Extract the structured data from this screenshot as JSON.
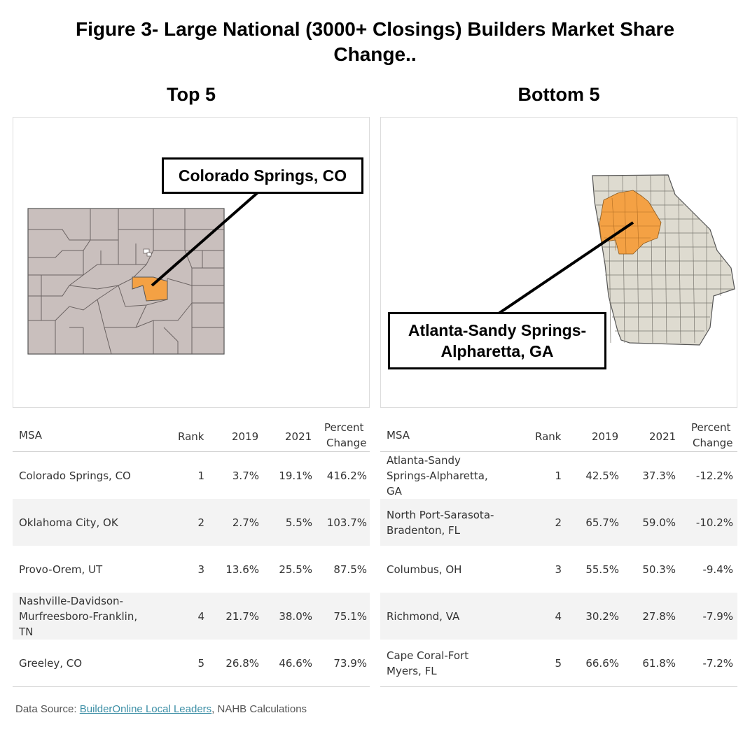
{
  "title_line1": "Figure 3- Large National (3000+ Closings) Builders Market Share",
  "title_line2": "Change..",
  "top": {
    "heading": "Top 5",
    "callout": "Colorado Springs, CO",
    "columns": [
      "MSA",
      "Rank",
      "2019",
      "2021",
      "Percent",
      "Change"
    ],
    "rows": [
      {
        "msa": "Colorado Springs, CO",
        "rank": "1",
        "y2019": "3.7%",
        "y2021": "19.1%",
        "pct": "416.2%"
      },
      {
        "msa": "Oklahoma City, OK",
        "rank": "2",
        "y2019": "2.7%",
        "y2021": "5.5%",
        "pct": "103.7%"
      },
      {
        "msa": "Provo-Orem, UT",
        "rank": "3",
        "y2019": "13.6%",
        "y2021": "25.5%",
        "pct": "87.5%"
      },
      {
        "msa": "Nashville-Davidson-Murfreesboro-Franklin, TN",
        "rank": "4",
        "y2019": "21.7%",
        "y2021": "38.0%",
        "pct": "75.1%"
      },
      {
        "msa": "Greeley, CO",
        "rank": "5",
        "y2019": "26.8%",
        "y2021": "46.6%",
        "pct": "73.9%"
      }
    ]
  },
  "bottom": {
    "heading": "Bottom 5",
    "callout_line1": "Atlanta-Sandy Springs-",
    "callout_line2": "Alpharetta, GA",
    "columns": [
      "MSA",
      "Rank",
      "2019",
      "2021",
      "Percent",
      "Change"
    ],
    "rows": [
      {
        "msa": "Atlanta-Sandy Springs-Alpharetta, GA",
        "rank": "1",
        "y2019": "42.5%",
        "y2021": "37.3%",
        "pct": "-12.2%"
      },
      {
        "msa": "North Port-Sarasota-Bradenton, FL",
        "rank": "2",
        "y2019": "65.7%",
        "y2021": "59.0%",
        "pct": "-10.2%"
      },
      {
        "msa": "Columbus, OH",
        "rank": "3",
        "y2019": "55.5%",
        "y2021": "50.3%",
        "pct": "-9.4%"
      },
      {
        "msa": "Richmond, VA",
        "rank": "4",
        "y2019": "30.2%",
        "y2021": "27.8%",
        "pct": "-7.9%"
      },
      {
        "msa": "Cape Coral-Fort Myers, FL",
        "rank": "5",
        "y2019": "66.6%",
        "y2021": "61.8%",
        "pct": "-7.2%"
      }
    ]
  },
  "source": {
    "prefix": "Data Source: ",
    "link": "BuilderOnline Local Leaders",
    "suffix": ", NAHB Calculations"
  },
  "colors": {
    "highlight": "#f4a144",
    "colorado_fill": "#c9bfbd",
    "georgia_fill": "#dedbd0",
    "border": "#555555",
    "alt_row": "#f3f3f3"
  }
}
